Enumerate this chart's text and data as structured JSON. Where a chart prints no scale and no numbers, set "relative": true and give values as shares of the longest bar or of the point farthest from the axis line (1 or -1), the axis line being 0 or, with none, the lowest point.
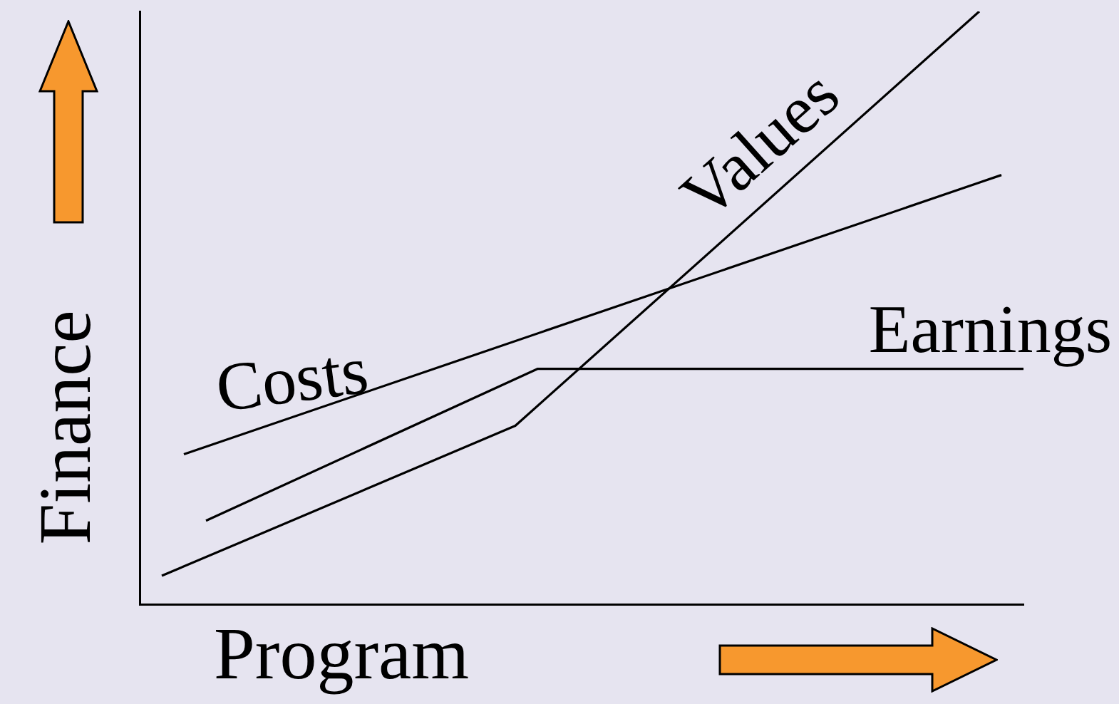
{
  "chart_data": {
    "type": "line",
    "relative": true,
    "xlabel": "Program",
    "ylabel": "Finance",
    "legend": false,
    "grid": false,
    "marker": "none",
    "line_style": "solid",
    "categories": [
      null,
      null,
      null,
      null,
      null,
      null,
      null,
      null,
      null,
      null,
      null,
      null,
      null,
      null,
      null,
      null,
      null,
      null,
      null,
      null,
      null,
      null,
      null,
      null,
      null,
      null,
      null,
      null,
      null,
      null,
      null,
      null,
      null,
      null,
      null,
      null,
      null,
      null,
      null,
      null,
      null
    ],
    "series": [
      {
        "name": "Costs",
        "color": "#000000",
        "values": [
          null,
          null,
          0.253,
          null,
          null,
          null,
          null,
          null,
          null,
          null,
          null,
          null,
          null,
          null,
          null,
          null,
          null,
          null,
          null,
          null,
          null,
          null,
          null,
          null,
          null,
          null,
          null,
          null,
          null,
          null,
          null,
          null,
          null,
          null,
          null,
          null,
          null,
          null,
          null,
          0.724,
          null
        ]
      },
      {
        "name": "Earnings",
        "color": "#000000",
        "values": [
          null,
          null,
          null,
          0.141,
          null,
          null,
          null,
          null,
          null,
          null,
          null,
          null,
          null,
          null,
          null,
          null,
          null,
          null,
          0.397,
          null,
          null,
          null,
          null,
          null,
          null,
          null,
          null,
          null,
          null,
          null,
          null,
          null,
          null,
          null,
          null,
          null,
          null,
          null,
          null,
          null,
          0.397
        ]
      },
      {
        "name": "Values",
        "color": "#000000",
        "values": [
          null,
          0.048,
          null,
          null,
          null,
          null,
          null,
          null,
          null,
          null,
          null,
          null,
          null,
          null,
          null,
          null,
          null,
          0.301,
          null,
          null,
          null,
          null,
          null,
          null,
          null,
          null,
          null,
          null,
          null,
          null,
          null,
          null,
          null,
          null,
          null,
          null,
          null,
          null,
          1,
          null,
          null
        ]
      }
    ]
  }
}
